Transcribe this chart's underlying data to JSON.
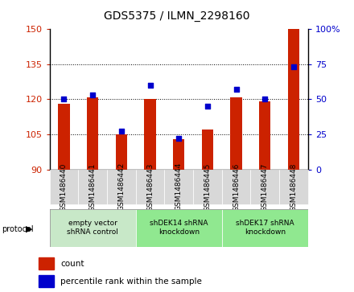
{
  "title": "GDS5375 / ILMN_2298160",
  "samples": [
    "GSM1486440",
    "GSM1486441",
    "GSM1486442",
    "GSM1486443",
    "GSM1486444",
    "GSM1486445",
    "GSM1486446",
    "GSM1486447",
    "GSM1486448"
  ],
  "count_values": [
    118,
    121,
    105,
    120,
    103,
    107,
    121,
    119,
    150
  ],
  "percentile_values": [
    50,
    53,
    27,
    60,
    22,
    45,
    57,
    50,
    73
  ],
  "ymin": 90,
  "ymax": 150,
  "y2min": 0,
  "y2max": 100,
  "yticks": [
    90,
    105,
    120,
    135,
    150
  ],
  "y2ticks": [
    0,
    25,
    50,
    75,
    100
  ],
  "bar_color": "#cc2200",
  "dot_color": "#0000cc",
  "groups": [
    {
      "label": "empty vector\nshRNA control",
      "start": 0,
      "end": 3
    },
    {
      "label": "shDEK14 shRNA\nknockdown",
      "start": 3,
      "end": 6
    },
    {
      "label": "shDEK17 shRNA\nknockdown",
      "start": 6,
      "end": 9
    }
  ],
  "group_colors": [
    "#c8e8c8",
    "#90e890",
    "#90e890"
  ],
  "legend_count_label": "count",
  "legend_pct_label": "percentile rank within the sample",
  "protocol_label": "protocol",
  "tick_label_bg": "#d8d8d8",
  "bar_width": 0.4
}
